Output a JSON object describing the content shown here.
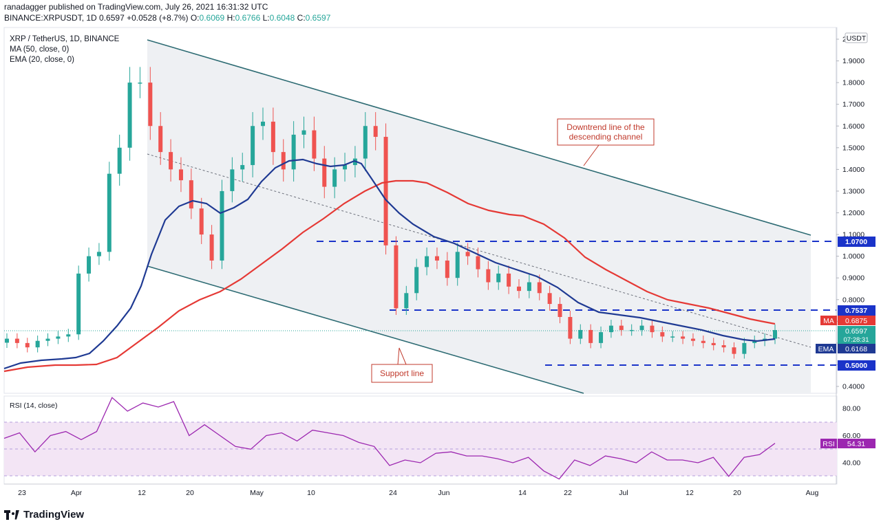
{
  "header": {
    "published": "ranadagger published on TradingView.com, July 26, 2021 16:31:32 UTC",
    "symbol": "BINANCE:XRPUSDT, 1D",
    "last": "0.6597",
    "change": "+0.0528 (+8.7%)",
    "ohlc": {
      "o_label": "O:",
      "o": "0.6069",
      "h_label": "H:",
      "h": "0.6766",
      "l_label": "L:",
      "l": "0.6048",
      "c_label": "C:",
      "c": "0.6597"
    }
  },
  "legend": {
    "pair": "XRP / TetherUS, 1D, BINANCE",
    "ma": "MA (50, close, 0)",
    "ema": "EMA (20, close, 0)",
    "rsi": "RSI (14, close)"
  },
  "price_axis": {
    "unit": "USDT",
    "ticks": [
      "2",
      "1.9000",
      "1.8000",
      "1.7000",
      "1.6000",
      "1.5000",
      "1.4000",
      "1.3000",
      "1.2000",
      "1.1000",
      "1.0000",
      "0.9000",
      "0.8000",
      "0.7000",
      "0.6000",
      "0.5000",
      "0.4000"
    ],
    "tick_values": [
      2.0,
      1.9,
      1.8,
      1.7,
      1.6,
      1.5,
      1.4,
      1.3,
      1.2,
      1.1,
      1.0,
      0.9,
      0.8,
      0.7,
      0.6,
      0.5,
      0.4
    ]
  },
  "rsi_axis": {
    "ticks": [
      "80.00",
      "60.00",
      "40.00"
    ],
    "tick_values": [
      80,
      60,
      40
    ]
  },
  "time_axis": {
    "labels": [
      "23",
      "Apr",
      "12",
      "20",
      "May",
      "10",
      "24",
      "Jun",
      "14",
      "22",
      "Jul",
      "12",
      "20",
      "Aug"
    ]
  },
  "badges": {
    "level_1070": "1.0700",
    "level_7537": "0.7537",
    "ma_label": "MA",
    "ma_value": "0.6875",
    "price_value": "0.6597",
    "countdown": "07:28:31",
    "ema_label": "EMA",
    "ema_value": "0.6168",
    "level_5000": "0.5000",
    "rsi_label": "RSI",
    "rsi_value": "54.31"
  },
  "annotations": {
    "downtrend_line_1": "Downtrend line of the",
    "downtrend_line_2": "descending channel",
    "support": "Support line"
  },
  "footer": {
    "brand": "TradingView"
  },
  "colors": {
    "bull": "#26a69a",
    "bear": "#ef5350",
    "ema": "#1f3a93",
    "ma": "#e53935",
    "channel": "#2d6b73",
    "level": "#1a33c9",
    "rsi": "#9c27b0",
    "annot": "#c0392b"
  },
  "chart_data": {
    "type": "line",
    "title": "XRP / TetherUS, 1D, BINANCE",
    "xlabel": "",
    "ylabel": "USDT",
    "ylim": [
      0.4,
      2.0
    ],
    "levels": [
      1.07,
      0.7537,
      0.5
    ],
    "ma_last": 0.6875,
    "ema_last": 0.6168,
    "last_close": 0.6597,
    "rsi_last": 54.31,
    "rsi_band": [
      30,
      70
    ],
    "series": [
      {
        "name": "Close",
        "values": [
          0.62,
          0.6,
          0.58,
          0.61,
          0.62,
          0.63,
          0.64,
          0.92,
          1.0,
          1.02,
          1.38,
          1.5,
          1.8,
          1.8,
          1.6,
          1.48,
          1.4,
          1.35,
          1.22,
          1.1,
          0.98,
          1.3,
          1.4,
          1.42,
          1.6,
          1.62,
          1.48,
          1.4,
          1.56,
          1.58,
          1.45,
          1.32,
          1.4,
          1.42,
          1.45,
          1.6,
          1.55,
          1.05,
          0.76,
          0.83,
          0.95,
          1.0,
          0.98,
          0.9,
          1.02,
          1.0,
          0.94,
          0.88,
          0.92,
          0.86,
          0.84,
          0.88,
          0.83,
          0.78,
          0.72,
          0.62,
          0.66,
          0.6,
          0.65,
          0.68,
          0.66,
          0.66,
          0.68,
          0.65,
          0.63,
          0.63,
          0.62,
          0.61,
          0.6,
          0.59,
          0.58,
          0.55,
          0.6,
          0.61,
          0.62,
          0.6597
        ]
      },
      {
        "name": "MA (50, close, 0)",
        "values": [
          0.5,
          0.5,
          0.51,
          0.52,
          0.55,
          0.6,
          0.66,
          0.72,
          0.78,
          0.82,
          0.86,
          0.92,
          0.98,
          1.05,
          1.13,
          1.21,
          1.28,
          1.33,
          1.35,
          1.35,
          1.33,
          1.3,
          1.25,
          1.21,
          1.2,
          1.17,
          1.12,
          1.04,
          0.96,
          0.88,
          0.8,
          0.77,
          0.76,
          0.74,
          0.72,
          0.7,
          0.6875
        ]
      },
      {
        "name": "EMA (20, close, 0)",
        "values": [
          0.5,
          0.52,
          0.58,
          0.72,
          0.9,
          1.12,
          1.22,
          1.25,
          1.2,
          1.32,
          1.38,
          1.45,
          1.46,
          1.43,
          1.28,
          1.15,
          1.08,
          1.02,
          0.95,
          0.88,
          0.82,
          0.76,
          0.72,
          0.7,
          0.68,
          0.66,
          0.64,
          0.62,
          0.6168
        ]
      },
      {
        "name": "RSI (14, close)",
        "values": [
          58,
          62,
          48,
          60,
          63,
          57,
          63,
          88,
          78,
          84,
          81,
          85,
          60,
          68,
          60,
          52,
          50,
          60,
          62,
          56,
          64,
          62,
          60,
          55,
          52,
          38,
          42,
          40,
          47,
          48,
          45,
          45,
          43,
          40,
          44,
          34,
          28,
          42,
          38,
          45,
          43,
          40,
          48,
          42,
          42,
          40,
          44,
          30,
          44,
          46,
          54.31
        ]
      }
    ]
  }
}
